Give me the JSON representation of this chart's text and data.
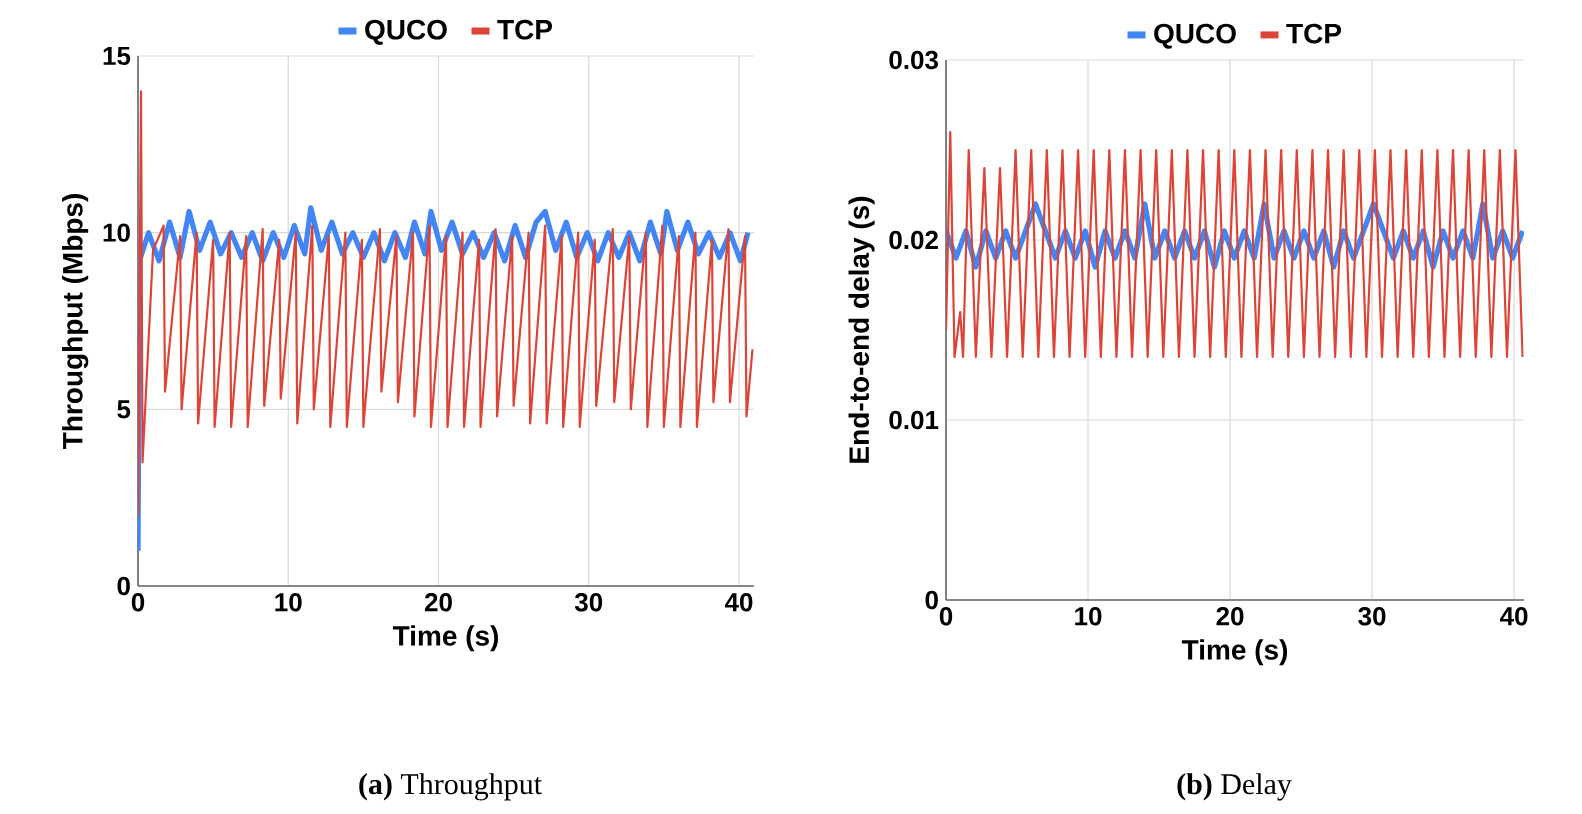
{
  "chart_data": [
    {
      "type": "line",
      "xlabel": "Time (s)",
      "ylabel": "Throughput (Mbps)",
      "xlim": [
        0,
        41
      ],
      "ylim": [
        0,
        15
      ],
      "xticks": [
        0,
        10,
        20,
        30,
        40
      ],
      "yticks": [
        0,
        5,
        10,
        15
      ],
      "grid": true,
      "legend": "top",
      "annotations": [
        "**(a)** Throughput"
      ],
      "series": [
        {
          "name": "QUCO",
          "color": "#4285f4",
          "x": [
            0,
            0.1,
            0.7,
            1.4,
            2.1,
            2.8,
            3.4,
            4.1,
            4.8,
            5.5,
            6.2,
            6.9,
            7.6,
            8.3,
            9.0,
            9.7,
            10.4,
            11.1,
            11.5,
            12.2,
            12.9,
            13.6,
            14.3,
            15.0,
            15.7,
            16.4,
            17.1,
            17.8,
            18.4,
            19.1,
            19.5,
            20.2,
            20.9,
            21.6,
            22.3,
            23.0,
            23.7,
            24.4,
            25.1,
            25.8,
            26.5,
            27.1,
            27.8,
            28.5,
            29.2,
            29.9,
            30.6,
            31.3,
            32.0,
            32.7,
            33.4,
            34.1,
            34.8,
            35.2,
            35.9,
            36.6,
            37.3,
            38.0,
            38.7,
            39.4,
            40.1,
            40.6
          ],
          "values": [
            1,
            9.2,
            10,
            9.2,
            10.3,
            9.3,
            10.6,
            9.5,
            10.3,
            9.4,
            10.0,
            9.3,
            10.0,
            9.2,
            10.0,
            9.3,
            10.2,
            9.4,
            10.7,
            9.5,
            10.3,
            9.4,
            10.0,
            9.3,
            10.0,
            9.2,
            10.0,
            9.3,
            10.3,
            9.4,
            10.6,
            9.5,
            10.3,
            9.4,
            10.0,
            9.3,
            10.0,
            9.2,
            10.2,
            9.3,
            10.3,
            10.6,
            9.5,
            10.3,
            9.3,
            10.0,
            9.2,
            10.0,
            9.3,
            10.0,
            9.2,
            10.3,
            9.4,
            10.6,
            9.5,
            10.3,
            9.4,
            10.0,
            9.3,
            10.0,
            9.2,
            10.0
          ]
        },
        {
          "name": "TCP",
          "color": "#db4437",
          "x": [
            0,
            0.2,
            0.3,
            1.0,
            1.7,
            1.8,
            2.8,
            2.9,
            3.9,
            4.0,
            5.0,
            5.1,
            6.1,
            6.2,
            7.2,
            7.3,
            8.3,
            8.4,
            9.4,
            9.5,
            10.5,
            10.6,
            11.6,
            11.7,
            12.7,
            12.8,
            13.8,
            13.9,
            14.9,
            15.0,
            16.1,
            16.2,
            17.2,
            17.3,
            18.3,
            18.4,
            19.4,
            19.5,
            20.5,
            20.6,
            21.6,
            21.7,
            22.7,
            22.8,
            23.8,
            23.9,
            24.9,
            25.0,
            26.0,
            26.1,
            27.1,
            27.2,
            28.2,
            28.3,
            29.3,
            29.4,
            30.4,
            30.5,
            31.6,
            31.7,
            32.7,
            32.8,
            33.8,
            33.9,
            34.9,
            35.0,
            36.0,
            36.1,
            37.1,
            37.2,
            38.2,
            38.3,
            39.3,
            39.4,
            40.4,
            40.5,
            40.9
          ],
          "values": [
            2,
            14,
            3.5,
            9.5,
            10.2,
            5.5,
            9.9,
            5.0,
            10.0,
            4.6,
            9.8,
            4.5,
            10.0,
            4.5,
            9.9,
            4.5,
            10.1,
            5.1,
            9.8,
            5.3,
            10.0,
            4.6,
            10.2,
            5.0,
            9.9,
            4.5,
            10.0,
            4.5,
            9.8,
            4.5,
            10.1,
            5.5,
            9.9,
            5.2,
            10.0,
            4.8,
            10.2,
            4.5,
            9.9,
            4.5,
            10.0,
            4.5,
            9.8,
            4.5,
            10.1,
            4.8,
            9.9,
            5.1,
            10.0,
            4.6,
            10.2,
            4.6,
            9.9,
            4.5,
            10.0,
            4.5,
            9.8,
            5.1,
            10.1,
            5.2,
            9.9,
            5.0,
            10.0,
            4.5,
            10.2,
            4.5,
            9.9,
            4.5,
            10.0,
            4.5,
            9.8,
            5.2,
            10.1,
            5.2,
            9.9,
            4.8,
            6.7
          ]
        }
      ]
    },
    {
      "type": "line",
      "xlabel": "Time (s)",
      "ylabel": "End-to-end delay (s)",
      "xlim": [
        0,
        40.7
      ],
      "ylim": [
        0,
        0.03
      ],
      "xticks": [
        0,
        10,
        20,
        30,
        40
      ],
      "yticks": [
        0,
        0.01,
        0.02,
        0.03
      ],
      "grid": true,
      "legend": "top",
      "annotations": [
        "**(b)** Delay"
      ],
      "series": [
        {
          "name": "QUCO",
          "color": "#4285f4",
          "x": [
            0,
            0.7,
            1.4,
            2.1,
            2.8,
            3.5,
            4.2,
            4.9,
            5.6,
            6.3,
            7.0,
            7.7,
            8.4,
            9.1,
            9.8,
            10.5,
            11.2,
            11.9,
            12.6,
            13.3,
            14.0,
            14.7,
            15.4,
            16.1,
            16.8,
            17.5,
            18.2,
            18.9,
            19.6,
            20.3,
            21.0,
            21.7,
            22.4,
            23.1,
            23.8,
            24.5,
            25.2,
            25.9,
            26.6,
            27.3,
            28.0,
            28.7,
            29.4,
            30.1,
            30.8,
            31.5,
            32.2,
            32.9,
            33.6,
            34.3,
            35.0,
            35.7,
            36.4,
            37.1,
            37.8,
            38.5,
            39.2,
            39.9,
            40.6
          ],
          "values": [
            0.0205,
            0.019,
            0.0205,
            0.0185,
            0.0205,
            0.019,
            0.0205,
            0.019,
            0.0205,
            0.022,
            0.0205,
            0.019,
            0.0205,
            0.019,
            0.0205,
            0.0185,
            0.0205,
            0.019,
            0.0205,
            0.019,
            0.022,
            0.019,
            0.0205,
            0.019,
            0.0205,
            0.019,
            0.0205,
            0.0185,
            0.0205,
            0.019,
            0.0205,
            0.019,
            0.022,
            0.019,
            0.0205,
            0.019,
            0.0205,
            0.019,
            0.0205,
            0.0185,
            0.0205,
            0.019,
            0.0205,
            0.022,
            0.0205,
            0.019,
            0.0205,
            0.019,
            0.0205,
            0.0185,
            0.0205,
            0.019,
            0.0205,
            0.019,
            0.022,
            0.019,
            0.0205,
            0.019,
            0.0205
          ]
        },
        {
          "name": "TCP",
          "color": "#db4437",
          "x": [
            0,
            0.3,
            0.6,
            1.0,
            1.2,
            1.6,
            2.1,
            2.7,
            3.2,
            3.8,
            4.3,
            4.9,
            5.4,
            6.0,
            6.5,
            7.1,
            7.6,
            8.2,
            8.7,
            9.3,
            9.8,
            10.4,
            10.9,
            11.5,
            12.0,
            12.6,
            13.1,
            13.7,
            14.2,
            14.8,
            15.3,
            15.9,
            16.4,
            17.0,
            17.5,
            18.1,
            18.6,
            19.2,
            19.7,
            20.3,
            20.8,
            21.4,
            21.9,
            22.5,
            23.0,
            23.6,
            24.1,
            24.7,
            25.2,
            25.8,
            26.3,
            26.9,
            27.4,
            28.0,
            28.5,
            29.1,
            29.6,
            30.2,
            30.7,
            31.3,
            31.8,
            32.4,
            32.9,
            33.5,
            34.0,
            34.6,
            35.1,
            35.7,
            36.2,
            36.8,
            37.3,
            37.9,
            38.4,
            39.0,
            39.5,
            40.1,
            40.6
          ],
          "values": [
            0.015,
            0.026,
            0.0135,
            0.016,
            0.0135,
            0.025,
            0.0135,
            0.024,
            0.0135,
            0.024,
            0.0135,
            0.025,
            0.0135,
            0.025,
            0.0135,
            0.025,
            0.0135,
            0.025,
            0.0135,
            0.025,
            0.0135,
            0.025,
            0.0135,
            0.025,
            0.0135,
            0.025,
            0.0135,
            0.025,
            0.0135,
            0.025,
            0.0135,
            0.025,
            0.0135,
            0.025,
            0.0135,
            0.025,
            0.0135,
            0.025,
            0.0135,
            0.025,
            0.0135,
            0.025,
            0.0135,
            0.025,
            0.0135,
            0.025,
            0.0135,
            0.025,
            0.0135,
            0.025,
            0.0135,
            0.025,
            0.0135,
            0.025,
            0.0135,
            0.025,
            0.0135,
            0.025,
            0.0135,
            0.025,
            0.0135,
            0.025,
            0.0135,
            0.025,
            0.0135,
            0.025,
            0.0135,
            0.025,
            0.0135,
            0.025,
            0.0135,
            0.025,
            0.0135,
            0.025,
            0.0135,
            0.025,
            0.0135
          ]
        }
      ]
    }
  ]
}
